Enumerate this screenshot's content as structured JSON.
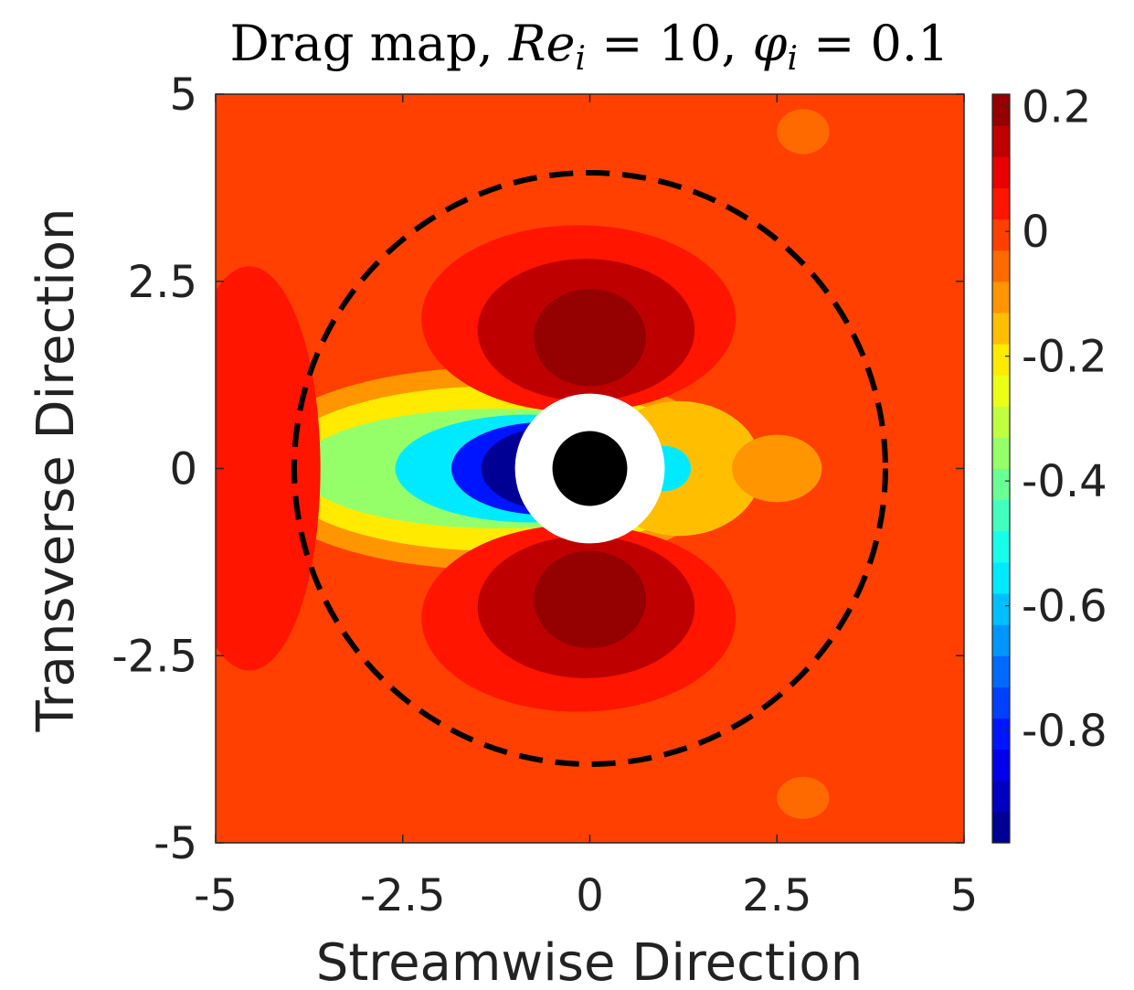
{
  "chart_data": {
    "type": "heatmap",
    "title": {
      "prefix": "Drag map, ",
      "re_symbol": "Re",
      "re_sub": "i",
      "re_value": " = 10, ",
      "phi_symbol": "φ",
      "phi_sub": "i",
      "phi_value": " = 0.1"
    },
    "xlabel": "Streamwise Direction",
    "ylabel": "Transverse Direction",
    "xlim": [
      -5,
      5
    ],
    "ylim": [
      -5,
      5
    ],
    "xticks": [
      -5,
      -2.5,
      0,
      2.5,
      5
    ],
    "yticks": [
      -5,
      -2.5,
      0,
      2.5,
      5
    ],
    "xtick_labels": [
      "-5",
      "-2.5",
      "0",
      "2.5",
      "5"
    ],
    "ytick_labels": [
      "-5",
      "-2.5",
      "0",
      "2.5",
      "5"
    ],
    "colorbar": {
      "range": [
        -0.98,
        0.22
      ],
      "ticks": [
        0.2,
        0,
        -0.2,
        -0.4,
        -0.6,
        -0.8
      ],
      "tick_labels": [
        "0.2",
        "0",
        "-0.2",
        "-0.4",
        "-0.6",
        "-0.8"
      ],
      "colormap": "jet",
      "levels": 24
    },
    "background_value": -0.03,
    "dashed_circle_radius": 3.95,
    "inner_white_radius": 1.0,
    "particle_radius": 0.5,
    "regions": [
      {
        "name": "upstream-wake-outer",
        "shape": "ellipse",
        "cx": -1.3,
        "cy": 0,
        "rx": 3.3,
        "ry": 1.35,
        "value": -0.12
      },
      {
        "name": "upstream-wake-mid",
        "shape": "ellipse",
        "cx": -1.25,
        "cy": 0,
        "rx": 3.0,
        "ry": 1.1,
        "value": -0.22
      },
      {
        "name": "upstream-wake-green",
        "shape": "ellipse",
        "cx": -1.2,
        "cy": 0,
        "rx": 2.7,
        "ry": 0.8,
        "value": -0.35
      },
      {
        "name": "upstream-wake-cyan",
        "shape": "ellipse",
        "cx": -0.8,
        "cy": 0,
        "rx": 1.8,
        "ry": 0.72,
        "value": -0.58
      },
      {
        "name": "upstream-wake-blue",
        "shape": "ellipse",
        "cx": -0.6,
        "cy": 0,
        "rx": 1.25,
        "ry": 0.62,
        "value": -0.8
      },
      {
        "name": "upstream-wake-core",
        "shape": "ellipse",
        "cx": -0.5,
        "cy": 0,
        "rx": 0.95,
        "ry": 0.55,
        "value": -0.95
      },
      {
        "name": "downstream-wake-yellow",
        "shape": "ellipse",
        "cx": 1.2,
        "cy": 0,
        "rx": 1.1,
        "ry": 0.9,
        "value": -0.16
      },
      {
        "name": "downstream-wake-cyan",
        "shape": "ellipse",
        "cx": 1.0,
        "cy": 0,
        "rx": 0.35,
        "ry": 0.3,
        "value": -0.55
      },
      {
        "name": "downstream-wake-tail",
        "shape": "ellipse",
        "cx": 2.5,
        "cy": 0,
        "rx": 0.6,
        "ry": 0.45,
        "value": -0.09
      },
      {
        "name": "upper-lobe-outer",
        "shape": "ellipse",
        "cx": -0.15,
        "cy": 2.0,
        "rx": 2.1,
        "ry": 1.25,
        "value": 0.06
      },
      {
        "name": "upper-lobe-mid",
        "shape": "ellipse",
        "cx": -0.05,
        "cy": 1.85,
        "rx": 1.45,
        "ry": 0.95,
        "value": 0.12
      },
      {
        "name": "upper-lobe-core",
        "shape": "ellipse",
        "cx": 0.0,
        "cy": 1.75,
        "rx": 0.75,
        "ry": 0.65,
        "value": 0.19
      },
      {
        "name": "lower-lobe-outer",
        "shape": "ellipse",
        "cx": -0.15,
        "cy": -2.0,
        "rx": 2.1,
        "ry": 1.25,
        "value": 0.06
      },
      {
        "name": "lower-lobe-mid",
        "shape": "ellipse",
        "cx": -0.05,
        "cy": -1.85,
        "rx": 1.45,
        "ry": 0.95,
        "value": 0.12
      },
      {
        "name": "lower-lobe-core",
        "shape": "ellipse",
        "cx": 0.0,
        "cy": -1.75,
        "rx": 0.75,
        "ry": 0.65,
        "value": 0.19
      },
      {
        "name": "far-upstream-band",
        "shape": "ellipse",
        "cx": -4.55,
        "cy": 0,
        "rx": 0.95,
        "ry": 2.7,
        "value": 0.03
      },
      {
        "name": "corner-patch-top",
        "shape": "ellipse",
        "cx": 2.85,
        "cy": 4.5,
        "rx": 0.35,
        "ry": 0.3,
        "value": -0.07
      },
      {
        "name": "corner-patch-bottom",
        "shape": "ellipse",
        "cx": 2.85,
        "cy": -4.4,
        "rx": 0.35,
        "ry": 0.28,
        "value": -0.07
      }
    ]
  }
}
